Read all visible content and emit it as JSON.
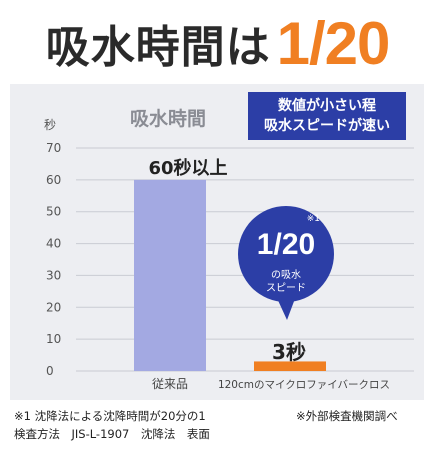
{
  "headline": {
    "text": "吸水時間は",
    "ratio": "1/20"
  },
  "note_box": {
    "line1": "数値が小さい程",
    "line2": "吸水スピードが速い"
  },
  "bubble": {
    "mark": "※1",
    "ratio": "1/20",
    "line1": "の吸水",
    "line2": "スピード"
  },
  "colors": {
    "old_bar": "#a3a9e2",
    "new_bar": "#f07f22",
    "bubble": "#2c3ea6",
    "accent": "#f07f22",
    "background": "#edeef2"
  },
  "chart_data": {
    "type": "bar",
    "title": "吸水時間",
    "ylabel": "秒",
    "xlabel": "",
    "ylim": [
      0,
      70
    ],
    "yticks": [
      0,
      10,
      20,
      30,
      40,
      50,
      60,
      70
    ],
    "grid": true,
    "categories": [
      "従来品",
      "120cmのマイクロファイバークロス"
    ],
    "values": [
      60,
      3
    ],
    "value_labels": [
      "60秒以上",
      "3秒"
    ]
  },
  "footnotes": {
    "left1": "※1 沈降法による沈降時間が20分の1",
    "left2": "検査方法　JIS-L-1907　沈降法　表面",
    "right": "※外部検査機関調べ"
  }
}
